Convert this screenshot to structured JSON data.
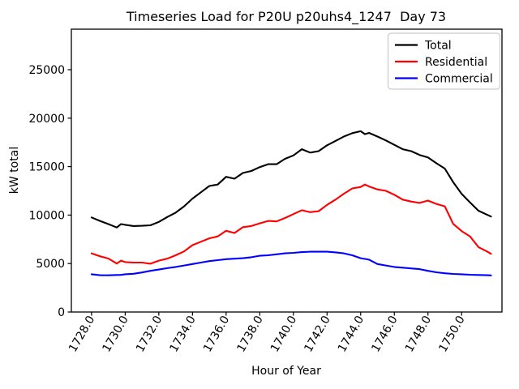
{
  "chart_data": {
    "type": "line",
    "title": "Timeseries Load for P20U p20uhs4_1247  Day 73",
    "xlabel": "Hour of Year",
    "ylabel": "kW total",
    "grid": false,
    "background_color": "#ffffff",
    "spine_color": "#000000",
    "xlim": [
      1726.8,
      1752.4
    ],
    "ylim": [
      0,
      29180
    ],
    "x_ticks": {
      "values": [
        1728,
        1730,
        1732,
        1734,
        1736,
        1738,
        1740,
        1742,
        1744,
        1746,
        1748,
        1750
      ],
      "labels": [
        "1728.0",
        "1730.0",
        "1732.0",
        "1734.0",
        "1736.0",
        "1738.0",
        "1740.0",
        "1742.0",
        "1744.0",
        "1746.0",
        "1748.0",
        "1750.0"
      ],
      "rotation_deg": 60
    },
    "y_ticks": {
      "values": [
        0,
        5000,
        10000,
        15000,
        20000,
        25000
      ],
      "labels": [
        "0",
        "5000",
        "10000",
        "15000",
        "20000",
        "25000"
      ]
    },
    "legend": {
      "position": "upper right",
      "frame_color": "#cccccc",
      "fill_color": "#ffffff",
      "entries": [
        "Total",
        "Residential",
        "Commercial"
      ]
    },
    "x": [
      1728.0,
      1728.5,
      1729.0,
      1729.5,
      1729.75,
      1730.0,
      1730.5,
      1731.0,
      1731.5,
      1732.0,
      1732.5,
      1733.0,
      1733.5,
      1734.0,
      1734.5,
      1735.0,
      1735.5,
      1736.0,
      1736.5,
      1737.0,
      1737.5,
      1738.0,
      1738.5,
      1739.0,
      1739.5,
      1740.0,
      1740.5,
      1741.0,
      1741.5,
      1742.0,
      1742.5,
      1743.0,
      1743.5,
      1744.0,
      1744.25,
      1744.5,
      1745.0,
      1745.5,
      1746.0,
      1746.5,
      1747.0,
      1747.5,
      1748.0,
      1748.5,
      1749.0,
      1749.5,
      1750.0,
      1750.5,
      1751.0,
      1751.5,
      1751.75
    ],
    "series": [
      {
        "name": "Total",
        "color": "#000000",
        "values": [
          9760,
          9400,
          9070,
          8720,
          9070,
          9000,
          8870,
          8900,
          8950,
          9300,
          9800,
          10250,
          10900,
          11700,
          12350,
          13000,
          13150,
          13950,
          13750,
          14350,
          14550,
          14950,
          15250,
          15250,
          15800,
          16150,
          16800,
          16450,
          16600,
          17200,
          17650,
          18100,
          18450,
          18650,
          18350,
          18480,
          18100,
          17700,
          17250,
          16800,
          16600,
          16200,
          15950,
          15350,
          14800,
          13400,
          12200,
          11300,
          10450,
          10050,
          9850
        ]
      },
      {
        "name": "Residential",
        "color": "#ff0000",
        "values": [
          6050,
          5750,
          5520,
          5000,
          5300,
          5150,
          5100,
          5100,
          4980,
          5300,
          5500,
          5850,
          6250,
          6900,
          7250,
          7600,
          7800,
          8380,
          8150,
          8750,
          8870,
          9150,
          9400,
          9350,
          9700,
          10100,
          10500,
          10300,
          10400,
          11050,
          11600,
          12200,
          12750,
          12900,
          13150,
          12950,
          12650,
          12500,
          12100,
          11600,
          11400,
          11250,
          11500,
          11150,
          10900,
          9100,
          8350,
          7800,
          6700,
          6250,
          6000
        ]
      },
      {
        "name": "Commercial",
        "color": "#0000ff",
        "values": [
          3900,
          3800,
          3790,
          3820,
          3830,
          3900,
          3950,
          4080,
          4250,
          4380,
          4520,
          4650,
          4800,
          4950,
          5100,
          5250,
          5350,
          5450,
          5500,
          5550,
          5650,
          5800,
          5850,
          5950,
          6050,
          6100,
          6180,
          6220,
          6220,
          6220,
          6150,
          6050,
          5850,
          5550,
          5480,
          5400,
          4950,
          4800,
          4650,
          4570,
          4500,
          4420,
          4250,
          4100,
          4000,
          3930,
          3900,
          3850,
          3820,
          3800,
          3780
        ]
      }
    ]
  }
}
